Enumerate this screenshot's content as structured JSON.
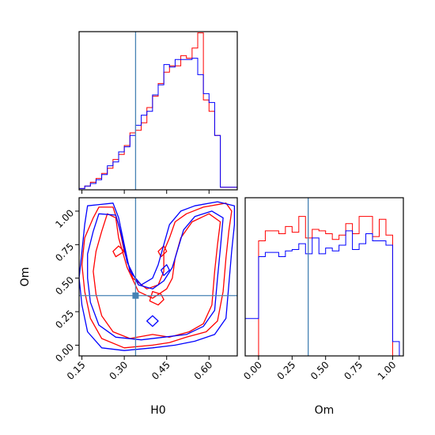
{
  "figure": {
    "type": "corner-plot",
    "background": "#ffffff"
  },
  "colors": {
    "series_a": "#ff0000",
    "series_b": "#0000ff",
    "truth": "#4682b4"
  },
  "chart_data": [
    {
      "id": "H0-hist",
      "type": "histogram",
      "xlim": [
        0.14,
        0.7
      ],
      "xlabel": "",
      "ylabel": "",
      "bins": [
        0.14,
        0.16,
        0.18,
        0.2,
        0.22,
        0.24,
        0.26,
        0.28,
        0.3,
        0.32,
        0.34,
        0.36,
        0.38,
        0.4,
        0.42,
        0.44,
        0.46,
        0.48,
        0.5,
        0.52,
        0.54,
        0.56,
        0.58,
        0.6,
        0.62,
        0.64,
        0.66,
        0.68,
        0.7
      ],
      "ylim": [
        0,
        1.25
      ],
      "truth_x": 0.34,
      "series": [
        {
          "name": "",
          "color": "#ff0000",
          "values": [
            0.01,
            0.03,
            0.06,
            0.09,
            0.13,
            0.17,
            0.24,
            0.28,
            0.35,
            0.45,
            0.47,
            0.53,
            0.65,
            0.74,
            0.84,
            0.93,
            0.98,
            0.98,
            1.06,
            1.04,
            1.12,
            1.24,
            0.71,
            0.62,
            0.43,
            0.02,
            0.02,
            0.02
          ]
        },
        {
          "name": "",
          "color": "#0000ff",
          "values": [
            0.01,
            0.03,
            0.05,
            0.08,
            0.12,
            0.19,
            0.22,
            0.3,
            0.34,
            0.43,
            0.51,
            0.59,
            0.62,
            0.75,
            0.83,
            0.99,
            0.97,
            1.03,
            1.03,
            1.03,
            1.04,
            0.91,
            0.76,
            0.69,
            0.43,
            0.02,
            0.02,
            0.02
          ]
        }
      ]
    },
    {
      "id": "Om-hist",
      "type": "histogram",
      "xlim": [
        -0.1,
        1.08
      ],
      "xlabel": "Om",
      "ylabel": "",
      "ticks": [
        "0.00",
        "0.25",
        "0.50",
        "0.75",
        "1.00"
      ],
      "tick_values": [
        0.0,
        0.25,
        0.5,
        0.75,
        1.0
      ],
      "bins": [
        -0.1,
        0.0,
        0.05,
        0.1,
        0.15,
        0.2,
        0.25,
        0.3,
        0.35,
        0.4,
        0.45,
        0.5,
        0.55,
        0.6,
        0.65,
        0.7,
        0.75,
        0.8,
        0.85,
        0.9,
        0.95,
        1.0,
        1.05
      ],
      "ylim": [
        0,
        1.1
      ],
      "truth_x": 0.37,
      "series": [
        {
          "name": "",
          "color": "#ff0000",
          "values": [
            0.0,
            0.8,
            0.87,
            0.87,
            0.85,
            0.9,
            0.86,
            0.97,
            0.82,
            0.88,
            0.87,
            0.85,
            0.81,
            0.84,
            0.92,
            0.85,
            0.97,
            0.97,
            0.83,
            0.95,
            0.84,
            0.0
          ]
        },
        {
          "name": "",
          "color": "#0000ff",
          "values": [
            0.26,
            0.69,
            0.72,
            0.72,
            0.69,
            0.73,
            0.74,
            0.78,
            0.71,
            0.82,
            0.71,
            0.75,
            0.73,
            0.77,
            0.87,
            0.74,
            0.78,
            0.85,
            0.8,
            0.8,
            0.77,
            0.1
          ]
        }
      ]
    },
    {
      "id": "H0-Om-contour",
      "type": "contour",
      "xlim": [
        0.14,
        0.7
      ],
      "ylim": [
        -0.08,
        1.1
      ],
      "xlabel": "H0",
      "ylabel": "Om",
      "x_ticks": [
        "0.15",
        "0.30",
        "0.45",
        "0.60"
      ],
      "x_tick_values": [
        0.15,
        0.3,
        0.45,
        0.6
      ],
      "y_ticks": [
        "0.00",
        "0.25",
        "0.50",
        "0.75",
        "1.00"
      ],
      "y_tick_values": [
        0.0,
        0.25,
        0.5,
        0.75,
        1.0
      ],
      "truth": [
        0.34,
        0.37
      ],
      "series": [
        {
          "name": "",
          "color": "#ff0000",
          "contours": [
            [
              [
                0.21,
                1.03
              ],
              [
                0.19,
                0.95
              ],
              [
                0.16,
                0.8
              ],
              [
                0.15,
                0.6
              ],
              [
                0.16,
                0.4
              ],
              [
                0.18,
                0.2
              ],
              [
                0.22,
                0.05
              ],
              [
                0.3,
                -0.02
              ],
              [
                0.4,
                0.0
              ],
              [
                0.46,
                0.02
              ],
              [
                0.52,
                0.06
              ],
              [
                0.59,
                0.1
              ],
              [
                0.63,
                0.18
              ],
              [
                0.65,
                0.4
              ],
              [
                0.66,
                0.65
              ],
              [
                0.67,
                0.85
              ],
              [
                0.68,
                1.0
              ],
              [
                0.66,
                1.06
              ],
              [
                0.58,
                1.03
              ],
              [
                0.52,
                0.98
              ],
              [
                0.48,
                0.92
              ],
              [
                0.46,
                0.8
              ],
              [
                0.44,
                0.7
              ],
              [
                0.44,
                0.55
              ],
              [
                0.42,
                0.45
              ],
              [
                0.38,
                0.42
              ],
              [
                0.33,
                0.5
              ],
              [
                0.3,
                0.7
              ],
              [
                0.28,
                0.9
              ],
              [
                0.26,
                1.03
              ],
              [
                0.21,
                1.03
              ]
            ],
            [
              [
                0.24,
                0.98
              ],
              [
                0.22,
                0.85
              ],
              [
                0.2,
                0.7
              ],
              [
                0.19,
                0.55
              ],
              [
                0.2,
                0.38
              ],
              [
                0.22,
                0.22
              ],
              [
                0.26,
                0.1
              ],
              [
                0.32,
                0.05
              ],
              [
                0.4,
                0.08
              ],
              [
                0.46,
                0.06
              ],
              [
                0.53,
                0.1
              ],
              [
                0.58,
                0.16
              ],
              [
                0.61,
                0.3
              ],
              [
                0.62,
                0.55
              ],
              [
                0.63,
                0.75
              ],
              [
                0.64,
                0.92
              ],
              [
                0.6,
                0.98
              ],
              [
                0.54,
                0.92
              ],
              [
                0.5,
                0.8
              ],
              [
                0.48,
                0.65
              ],
              [
                0.47,
                0.5
              ],
              [
                0.45,
                0.42
              ],
              [
                0.4,
                0.35
              ],
              [
                0.35,
                0.4
              ],
              [
                0.31,
                0.58
              ],
              [
                0.28,
                0.8
              ],
              [
                0.27,
                0.95
              ],
              [
                0.24,
                0.98
              ]
            ],
            [
              [
                0.4,
                0.4
              ],
              [
                0.43,
                0.38
              ],
              [
                0.44,
                0.34
              ],
              [
                0.42,
                0.3
              ],
              [
                0.39,
                0.33
              ],
              [
                0.4,
                0.4
              ]
            ],
            [
              [
                0.42,
                0.7
              ],
              [
                0.44,
                0.74
              ],
              [
                0.45,
                0.7
              ],
              [
                0.43,
                0.66
              ],
              [
                0.42,
                0.7
              ]
            ],
            [
              [
                0.26,
                0.7
              ],
              [
                0.28,
                0.74
              ],
              [
                0.3,
                0.7
              ],
              [
                0.27,
                0.66
              ],
              [
                0.26,
                0.7
              ]
            ]
          ]
        },
        {
          "name": "",
          "color": "#0000ff",
          "contours": [
            [
              [
                0.17,
                1.04
              ],
              [
                0.16,
                0.9
              ],
              [
                0.15,
                0.7
              ],
              [
                0.14,
                0.5
              ],
              [
                0.15,
                0.3
              ],
              [
                0.17,
                0.1
              ],
              [
                0.22,
                -0.02
              ],
              [
                0.3,
                -0.04
              ],
              [
                0.4,
                -0.02
              ],
              [
                0.48,
                0.0
              ],
              [
                0.55,
                0.03
              ],
              [
                0.62,
                0.08
              ],
              [
                0.66,
                0.2
              ],
              [
                0.67,
                0.45
              ],
              [
                0.68,
                0.7
              ],
              [
                0.69,
                0.9
              ],
              [
                0.69,
                1.04
              ],
              [
                0.63,
                1.07
              ],
              [
                0.55,
                1.04
              ],
              [
                0.5,
                1.0
              ],
              [
                0.46,
                0.9
              ],
              [
                0.44,
                0.75
              ],
              [
                0.42,
                0.6
              ],
              [
                0.4,
                0.5
              ],
              [
                0.36,
                0.45
              ],
              [
                0.32,
                0.55
              ],
              [
                0.3,
                0.75
              ],
              [
                0.28,
                0.95
              ],
              [
                0.26,
                1.06
              ],
              [
                0.17,
                1.04
              ]
            ],
            [
              [
                0.21,
                0.98
              ],
              [
                0.19,
                0.85
              ],
              [
                0.17,
                0.68
              ],
              [
                0.17,
                0.5
              ],
              [
                0.18,
                0.32
              ],
              [
                0.21,
                0.15
              ],
              [
                0.27,
                0.06
              ],
              [
                0.36,
                0.04
              ],
              [
                0.44,
                0.06
              ],
              [
                0.52,
                0.08
              ],
              [
                0.58,
                0.14
              ],
              [
                0.62,
                0.26
              ],
              [
                0.63,
                0.5
              ],
              [
                0.64,
                0.72
              ],
              [
                0.65,
                0.95
              ],
              [
                0.61,
                1.0
              ],
              [
                0.55,
                0.96
              ],
              [
                0.51,
                0.86
              ],
              [
                0.49,
                0.72
              ],
              [
                0.47,
                0.58
              ],
              [
                0.44,
                0.48
              ],
              [
                0.4,
                0.42
              ],
              [
                0.35,
                0.45
              ],
              [
                0.31,
                0.62
              ],
              [
                0.29,
                0.82
              ],
              [
                0.27,
                0.97
              ],
              [
                0.21,
                0.98
              ]
            ],
            [
              [
                0.38,
                0.18
              ],
              [
                0.4,
                0.22
              ],
              [
                0.42,
                0.18
              ],
              [
                0.4,
                0.14
              ],
              [
                0.38,
                0.18
              ]
            ],
            [
              [
                0.43,
                0.56
              ],
              [
                0.45,
                0.6
              ],
              [
                0.46,
                0.56
              ],
              [
                0.44,
                0.52
              ],
              [
                0.43,
                0.56
              ]
            ]
          ]
        }
      ]
    }
  ]
}
